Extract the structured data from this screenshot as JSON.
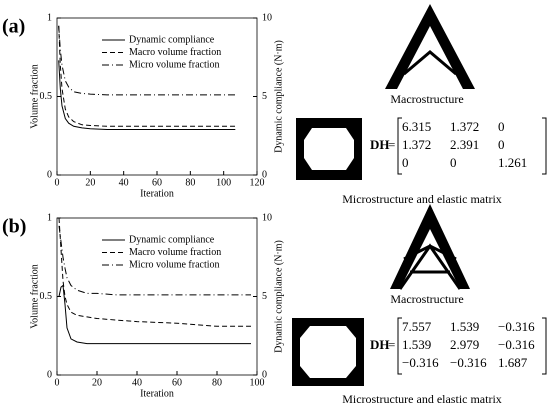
{
  "chart_data": [
    {
      "type": "line",
      "xlabel": "Iteration",
      "ylabel": "Volume fraction",
      "y2label": "Dynamic compliance (N·m)",
      "xlim": [
        0,
        120
      ],
      "xticks": [
        0,
        20,
        40,
        60,
        80,
        100,
        120
      ],
      "ylim": [
        0,
        1
      ],
      "yticks": [
        0,
        0.5,
        1
      ],
      "y2lim": [
        0,
        10
      ],
      "y2ticks": [
        0,
        5,
        10
      ],
      "x": [
        1,
        2,
        3,
        5,
        7,
        10,
        15,
        20,
        30,
        40,
        60,
        80,
        107
      ],
      "series": [
        {
          "name": "Dynamic compliance",
          "color": "#000000",
          "dash": "solid",
          "axis": "y2",
          "values": [
            7.3,
            5.5,
            4.4,
            3.6,
            3.3,
            3.1,
            3.0,
            2.95,
            2.9,
            2.9,
            2.9,
            2.9,
            2.9
          ]
        },
        {
          "name": "Macro volume fraction",
          "color": "#000000",
          "dash": "dashed",
          "values": [
            0.95,
            0.7,
            0.55,
            0.42,
            0.37,
            0.34,
            0.32,
            0.315,
            0.31,
            0.31,
            0.31,
            0.31,
            0.31
          ]
        },
        {
          "name": "Micro volume fraction",
          "color": "#000000",
          "dash": "dashdot",
          "values": [
            0.95,
            0.8,
            0.7,
            0.6,
            0.56,
            0.53,
            0.52,
            0.515,
            0.51,
            0.51,
            0.51,
            0.51,
            0.51
          ]
        }
      ]
    },
    {
      "type": "line",
      "xlabel": "Iteration",
      "ylabel": "Volume fraction",
      "y2label": "Dynamic compliance (N·m)",
      "xlim": [
        0,
        100
      ],
      "xticks": [
        0,
        20,
        40,
        60,
        80,
        100
      ],
      "ylim": [
        0,
        1
      ],
      "yticks": [
        0,
        0.5,
        1
      ],
      "y2lim": [
        0,
        10
      ],
      "y2ticks": [
        0,
        5,
        10
      ],
      "x": [
        1,
        2,
        3,
        4,
        5,
        7,
        10,
        15,
        20,
        30,
        40,
        60,
        80,
        97
      ],
      "series": [
        {
          "name": "Dynamic compliance",
          "color": "#000000",
          "dash": "solid",
          "axis": "y2",
          "values": [
            5.0,
            5.6,
            5.7,
            4.5,
            3.0,
            2.3,
            2.1,
            2.0,
            2.0,
            2.0,
            2.0,
            2.0,
            2.0,
            2.0
          ]
        },
        {
          "name": "Macro volume fraction",
          "color": "#000000",
          "dash": "dashed",
          "values": [
            1.0,
            0.8,
            0.6,
            0.5,
            0.45,
            0.4,
            0.38,
            0.37,
            0.36,
            0.35,
            0.34,
            0.33,
            0.31,
            0.31
          ]
        },
        {
          "name": "Micro volume fraction",
          "color": "#000000",
          "dash": "dashdot",
          "values": [
            0.95,
            0.85,
            0.75,
            0.68,
            0.62,
            0.57,
            0.54,
            0.52,
            0.52,
            0.51,
            0.51,
            0.51,
            0.51,
            0.51
          ]
        }
      ]
    }
  ],
  "panels": [
    {
      "label": "(a)",
      "macro_caption": "Macrostructure",
      "micro_caption": "Microstructure and elastic matrix",
      "matrix_name": "DH",
      "matrix": [
        [
          "6.315",
          "1.372",
          "0"
        ],
        [
          "1.372",
          "2.391",
          "0"
        ],
        [
          "0",
          "0",
          "1.261"
        ]
      ]
    },
    {
      "label": "(b)",
      "macro_caption": "Macrostructure",
      "micro_caption": "Microstructure and elastic matrix",
      "matrix_name": "DH",
      "matrix": [
        [
          "7.557",
          "1.539",
          "−0.316"
        ],
        [
          "1.539",
          "2.979",
          "−0.316"
        ],
        [
          "−0.316",
          "−0.316",
          "1.687"
        ]
      ]
    }
  ]
}
